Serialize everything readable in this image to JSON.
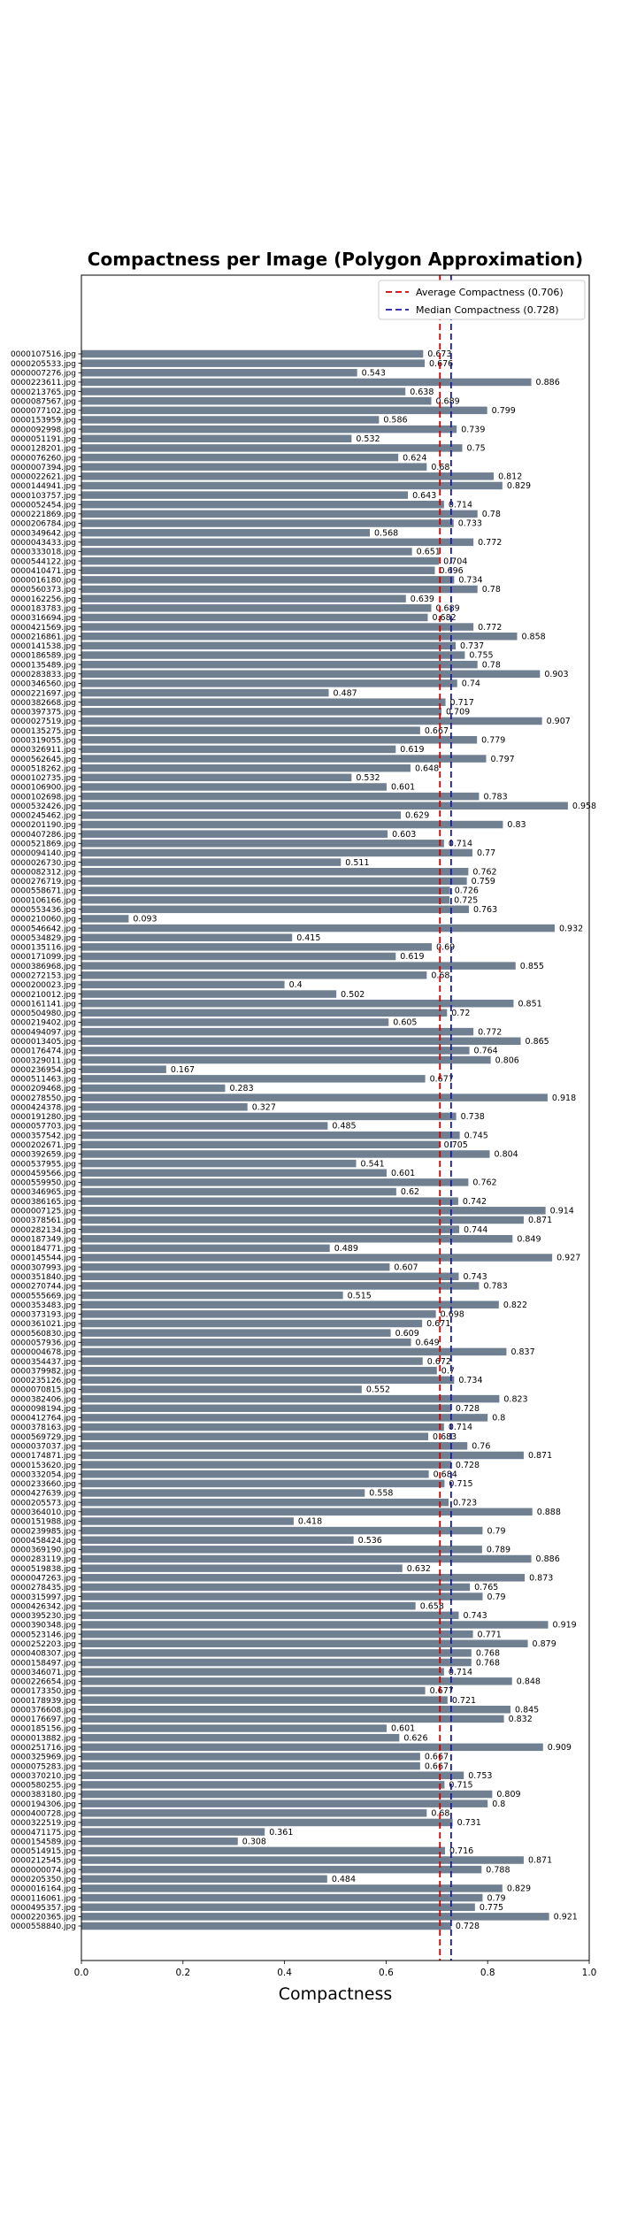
{
  "chart_data": {
    "type": "bar",
    "orientation": "horizontal",
    "title": "Compactness per Image (Polygon Approximation)",
    "xlabel": "Compactness",
    "ylabel": "",
    "xlim": [
      0,
      1
    ],
    "xticks": [
      "0.0",
      "0.2",
      "0.4",
      "0.6",
      "0.8",
      "1.0"
    ],
    "bar_color": "#708090",
    "legend_position": "upper right",
    "reference_lines": [
      {
        "label": "Average Compactness (0.706)",
        "value": 0.706,
        "color": "#cc0000",
        "style": "dashed"
      },
      {
        "label": "Median Compactness (0.728)",
        "value": 0.728,
        "color": "#1a1aaa",
        "style": "dashed"
      }
    ],
    "categories": [
      "0000107516.jpg",
      "0000205533.jpg",
      "0000007276.jpg",
      "0000223611.jpg",
      "0000213765.jpg",
      "0000087567.jpg",
      "0000077102.jpg",
      "0000153959.jpg",
      "0000092998.jpg",
      "0000051191.jpg",
      "0000128201.jpg",
      "0000076260.jpg",
      "0000007394.jpg",
      "0000022621.jpg",
      "0000144941.jpg",
      "0000103757.jpg",
      "0000052454.jpg",
      "0000221869.jpg",
      "0000206784.jpg",
      "0000349642.jpg",
      "0000043433.jpg",
      "0000333018.jpg",
      "0000544122.jpg",
      "0000410471.jpg",
      "0000016180.jpg",
      "0000560373.jpg",
      "0000162256.jpg",
      "0000183783.jpg",
      "0000316694.jpg",
      "0000421569.jpg",
      "0000216861.jpg",
      "0000141538.jpg",
      "0000186589.jpg",
      "0000135489.jpg",
      "0000283833.jpg",
      "0000346560.jpg",
      "0000221697.jpg",
      "0000382668.jpg",
      "0000397375.jpg",
      "0000027519.jpg",
      "0000135275.jpg",
      "0000319055.jpg",
      "0000326911.jpg",
      "0000562645.jpg",
      "0000518262.jpg",
      "0000102735.jpg",
      "0000106900.jpg",
      "0000102698.jpg",
      "0000532426.jpg",
      "0000245462.jpg",
      "0000201190.jpg",
      "0000407286.jpg",
      "0000521869.jpg",
      "0000094140.jpg",
      "0000026730.jpg",
      "0000082312.jpg",
      "0000276719.jpg",
      "0000558671.jpg",
      "0000106166.jpg",
      "0000553436.jpg",
      "0000210060.jpg",
      "0000546642.jpg",
      "0000534829.jpg",
      "0000135116.jpg",
      "0000171099.jpg",
      "0000386968.jpg",
      "0000272153.jpg",
      "0000200023.jpg",
      "0000210012.jpg",
      "0000161141.jpg",
      "0000504980.jpg",
      "0000219402.jpg",
      "0000494097.jpg",
      "0000013405.jpg",
      "0000176474.jpg",
      "0000329011.jpg",
      "0000236954.jpg",
      "0000511463.jpg",
      "0000209468.jpg",
      "0000278550.jpg",
      "0000424378.jpg",
      "0000191280.jpg",
      "0000057703.jpg",
      "0000357542.jpg",
      "0000202671.jpg",
      "0000392659.jpg",
      "0000537955.jpg",
      "0000459566.jpg",
      "0000559950.jpg",
      "0000346965.jpg",
      "0000386165.jpg",
      "0000007125.jpg",
      "0000378561.jpg",
      "0000282134.jpg",
      "0000187349.jpg",
      "0000184771.jpg",
      "0000145544.jpg",
      "0000307993.jpg",
      "0000351840.jpg",
      "0000270744.jpg",
      "0000555669.jpg",
      "0000353483.jpg",
      "0000373193.jpg",
      "0000361021.jpg",
      "0000560830.jpg",
      "0000057936.jpg",
      "0000004678.jpg",
      "0000354437.jpg",
      "0000379982.jpg",
      "0000235126.jpg",
      "0000070815.jpg",
      "0000382406.jpg",
      "0000098194.jpg",
      "0000412764.jpg",
      "0000378163.jpg",
      "0000569729.jpg",
      "0000037037.jpg",
      "0000174871.jpg",
      "0000153620.jpg",
      "0000332054.jpg",
      "0000233660.jpg",
      "0000427639.jpg",
      "0000205573.jpg",
      "0000364010.jpg",
      "0000151988.jpg",
      "0000239985.jpg",
      "0000458424.jpg",
      "0000369190.jpg",
      "0000283119.jpg",
      "0000519838.jpg",
      "0000047263.jpg",
      "0000278435.jpg",
      "0000315997.jpg",
      "0000426342.jpg",
      "0000395230.jpg",
      "0000390348.jpg",
      "0000523146.jpg",
      "0000252203.jpg",
      "0000408307.jpg",
      "0000158497.jpg",
      "0000346071.jpg",
      "0000226654.jpg",
      "0000173350.jpg",
      "0000178939.jpg",
      "0000376608.jpg",
      "0000176697.jpg",
      "0000185156.jpg",
      "0000013882.jpg",
      "0000251716.jpg",
      "0000325969.jpg",
      "0000075283.jpg",
      "0000370210.jpg",
      "0000580255.jpg",
      "0000383180.jpg",
      "0000194306.jpg",
      "0000400728.jpg",
      "0000322519.jpg",
      "0000471175.jpg",
      "0000154589.jpg",
      "0000514915.jpg",
      "0000212545.jpg",
      "0000000074.jpg",
      "0000205350.jpg",
      "0000016164.jpg",
      "0000116061.jpg",
      "0000495357.jpg",
      "0000220365.jpg",
      "0000558840.jpg"
    ],
    "values": [
      0.673,
      0.676,
      0.543,
      0.886,
      0.638,
      0.689,
      0.799,
      0.586,
      0.739,
      0.532,
      0.75,
      0.624,
      0.68,
      0.812,
      0.829,
      0.643,
      0.714,
      0.78,
      0.733,
      0.568,
      0.772,
      0.651,
      0.704,
      0.696,
      0.734,
      0.78,
      0.639,
      0.689,
      0.682,
      0.772,
      0.858,
      0.737,
      0.755,
      0.78,
      0.903,
      0.74,
      0.487,
      0.717,
      0.709,
      0.907,
      0.667,
      0.779,
      0.619,
      0.797,
      0.648,
      0.532,
      0.601,
      0.783,
      0.958,
      0.629,
      0.83,
      0.603,
      0.714,
      0.77,
      0.511,
      0.762,
      0.759,
      0.726,
      0.725,
      0.763,
      0.093,
      0.932,
      0.415,
      0.69,
      0.619,
      0.855,
      0.68,
      0.4,
      0.502,
      0.851,
      0.72,
      0.605,
      0.772,
      0.865,
      0.764,
      0.806,
      0.167,
      0.677,
      0.283,
      0.918,
      0.327,
      0.738,
      0.485,
      0.745,
      0.705,
      0.804,
      0.541,
      0.601,
      0.762,
      0.62,
      0.742,
      0.914,
      0.871,
      0.744,
      0.849,
      0.489,
      0.927,
      0.607,
      0.743,
      0.783,
      0.515,
      0.822,
      0.698,
      0.671,
      0.609,
      0.649,
      0.837,
      0.672,
      0.7,
      0.734,
      0.552,
      0.823,
      0.728,
      0.8,
      0.714,
      0.683,
      0.76,
      0.871,
      0.728,
      0.684,
      0.715,
      0.558,
      0.723,
      0.888,
      0.418,
      0.79,
      0.536,
      0.789,
      0.886,
      0.632,
      0.873,
      0.765,
      0.79,
      0.658,
      0.743,
      0.919,
      0.771,
      0.879,
      0.768,
      0.768,
      0.714,
      0.848,
      0.677,
      0.721,
      0.845,
      0.832,
      0.601,
      0.626,
      0.909,
      0.667,
      0.667,
      0.753,
      0.715,
      0.809,
      0.8,
      0.68,
      0.731,
      0.361,
      0.308,
      0.716,
      0.871,
      0.788,
      0.484,
      0.829,
      0.79,
      0.775,
      0.921,
      0.728
    ]
  }
}
